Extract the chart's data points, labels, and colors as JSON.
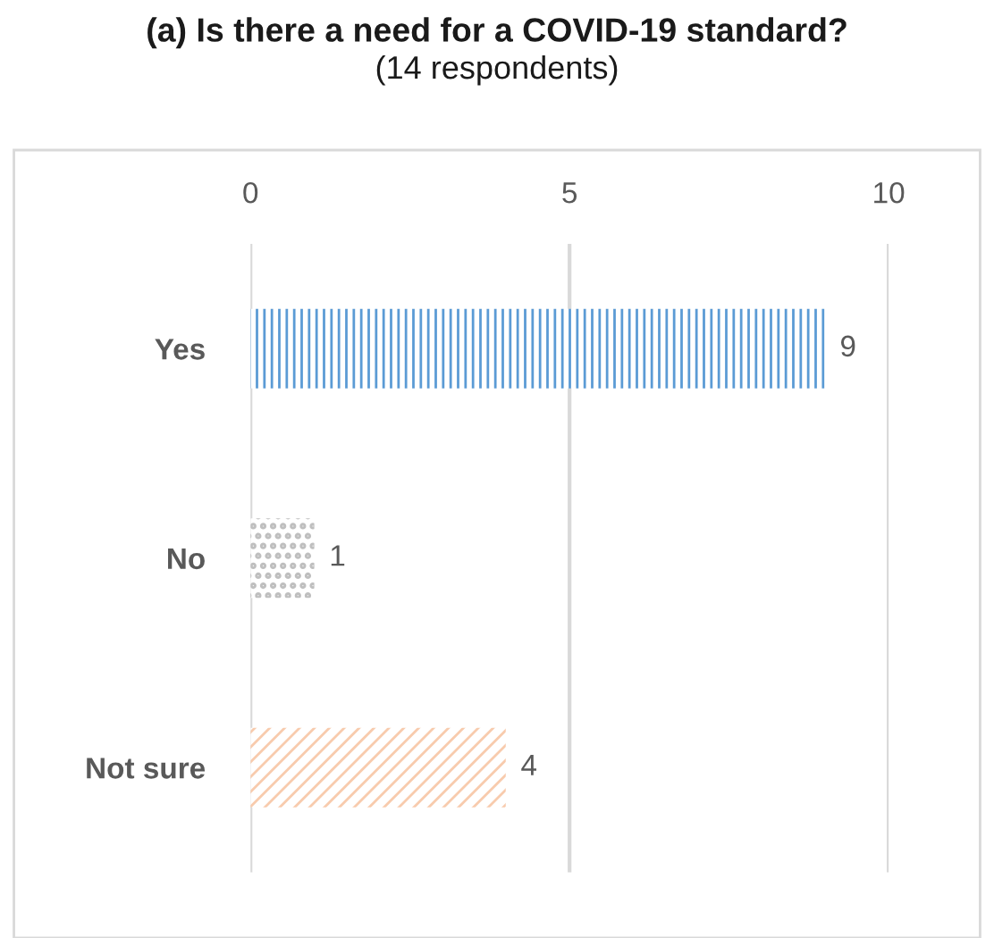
{
  "chart_data": {
    "type": "bar",
    "orientation": "horizontal",
    "title": "(a) Is there a need for a COVID-19 standard?",
    "subtitle": "(14 respondents)",
    "categories": [
      "Yes",
      "No",
      "Not sure"
    ],
    "values": [
      9,
      1,
      4
    ],
    "colors": [
      "#5b9bd5",
      "#bfbfbf",
      "#f8cbad"
    ],
    "xlim": [
      0,
      10
    ],
    "xticks": [
      0,
      5,
      10
    ],
    "grid": "x",
    "data_labels": true
  }
}
